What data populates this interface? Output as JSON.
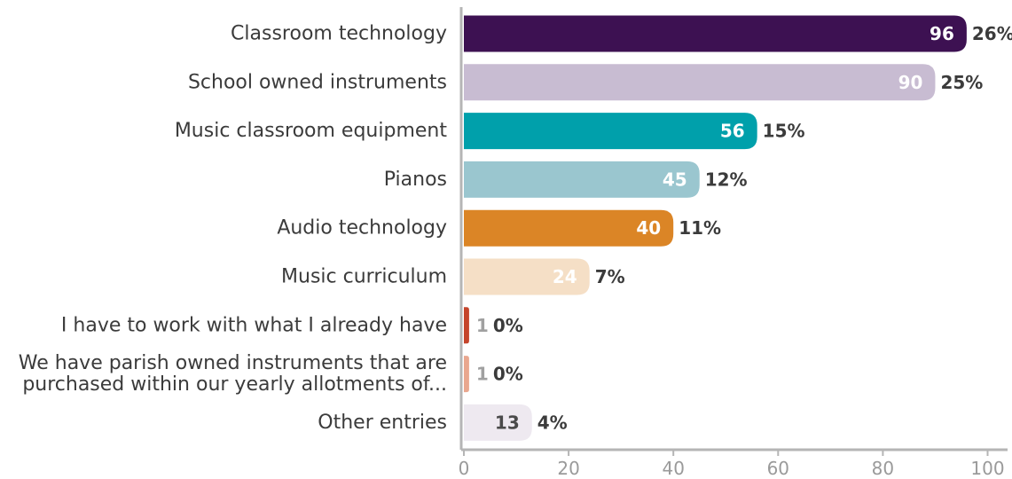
{
  "chart_data": {
    "type": "bar",
    "orientation": "horizontal",
    "categories": [
      [
        "Classroom technology"
      ],
      [
        "School owned instruments"
      ],
      [
        "Music classroom equipment"
      ],
      [
        "Pianos"
      ],
      [
        "Audio technology"
      ],
      [
        "Music curriculum"
      ],
      [
        "I have to work with what I already have"
      ],
      [
        "We have parish owned instruments that are",
        "purchased within our yearly allotments of..."
      ],
      [
        "Other entries"
      ]
    ],
    "values": [
      96,
      90,
      56,
      45,
      40,
      24,
      1,
      1,
      13
    ],
    "value_labels": [
      "96",
      "90",
      "56",
      "45",
      "40",
      "24",
      "1",
      "1",
      "13"
    ],
    "percent_labels": [
      "26%",
      "25%",
      "15%",
      "12%",
      "11%",
      "7%",
      "0%",
      "0%",
      "4%"
    ],
    "colors": [
      "#3d1152",
      "#c8bcd2",
      "#00a0ab",
      "#9ac6cf",
      "#db8526",
      "#f5dfc6",
      "#c5452c",
      "#e9a78f",
      "#eee9f0"
    ],
    "value_label_colors": [
      "#ffffff",
      "#ffffff",
      "#ffffff",
      "#ffffff",
      "#ffffff",
      "#ffffff",
      "#a0a0a0",
      "#a0a0a0",
      "#4a4a4a"
    ],
    "xlim": [
      0,
      100
    ],
    "xticks": [
      "0",
      "20",
      "40",
      "60",
      "80",
      "100"
    ],
    "axis_color": "#b5b5b5",
    "grid": false,
    "title": "",
    "xlabel": "",
    "ylabel": ""
  }
}
